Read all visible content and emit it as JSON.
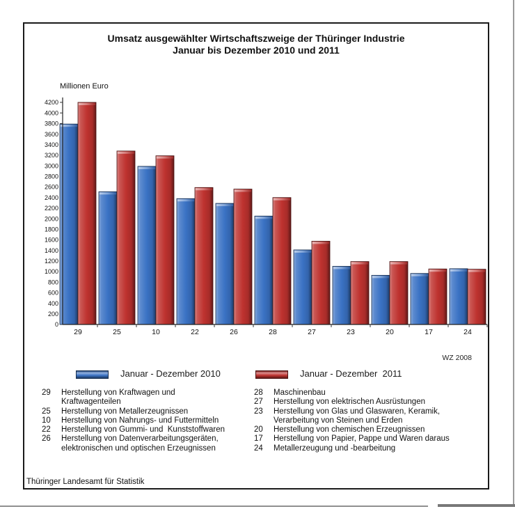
{
  "title": {
    "line1": "Umsatz ausgewählter Wirtschaftszweige der Thüringer Industrie",
    "line2": "Januar bis Dezember 2010 und 2011"
  },
  "wz_note": "WZ 2008",
  "footer": "Thüringer Landesamt für Statistik",
  "legend": {
    "items": [
      {
        "label": "Januar - Dezember 2010",
        "color": "#3A72C4"
      },
      {
        "label": "Januar - Dezember  2011",
        "color": "#BE322F"
      }
    ]
  },
  "chart_data": {
    "type": "bar",
    "title": "Umsatz ausgewählter Wirtschaftszweige der Thüringer Industrie, Januar bis Dezember 2010 und 2011",
    "ylabel": "Millionen Euro",
    "xlabel": "",
    "categories": [
      "29",
      "25",
      "10",
      "22",
      "26",
      "28",
      "27",
      "23",
      "20",
      "17",
      "24"
    ],
    "series": [
      {
        "name": "Januar - Dezember 2010",
        "color": "#3A72C4",
        "values": [
          3790,
          2510,
          2990,
          2380,
          2290,
          2050,
          1410,
          1100,
          930,
          965,
          1055
        ]
      },
      {
        "name": "Januar - Dezember 2011",
        "color": "#BE322F",
        "values": [
          4200,
          3280,
          3190,
          2590,
          2560,
          2400,
          1575,
          1190,
          1190,
          1050,
          1045
        ]
      }
    ],
    "ylim": [
      0,
      4200
    ],
    "ytick_step": 200,
    "grid": false,
    "legend_position": "bottom",
    "category_note": "WZ 2008"
  },
  "industry_legend": {
    "left": [
      {
        "code": "29",
        "label": "Herstellung von Kraftwagen und Kraftwagenteilen"
      },
      {
        "code": "25",
        "label": "Herstellung von Metallerzeugnissen"
      },
      {
        "code": "10",
        "label": "Herstellung von Nahrungs- und Futtermitteln"
      },
      {
        "code": "22",
        "label": "Herstellung von Gummi- und  Kunststoffwaren"
      },
      {
        "code": "26",
        "label": "Herstellung von Datenverarbeitungsgeräten, elektronischen und optischen Erzeugnissen"
      }
    ],
    "right": [
      {
        "code": "28",
        "label": "Maschinenbau"
      },
      {
        "code": "27",
        "label": "Herstellung von elektrischen Ausrüstungen"
      },
      {
        "code": "23",
        "label": "Herstellung von Glas und Glaswaren, Keramik, Verarbeitung von Steinen und Erden"
      },
      {
        "code": "20",
        "label": "Herstellung von chemischen Erzeugnissen"
      },
      {
        "code": "17",
        "label": "Herstellung von Papier, Pappe und Waren daraus"
      },
      {
        "code": "24",
        "label": "Metallerzeugung und -bearbeitung"
      }
    ]
  }
}
